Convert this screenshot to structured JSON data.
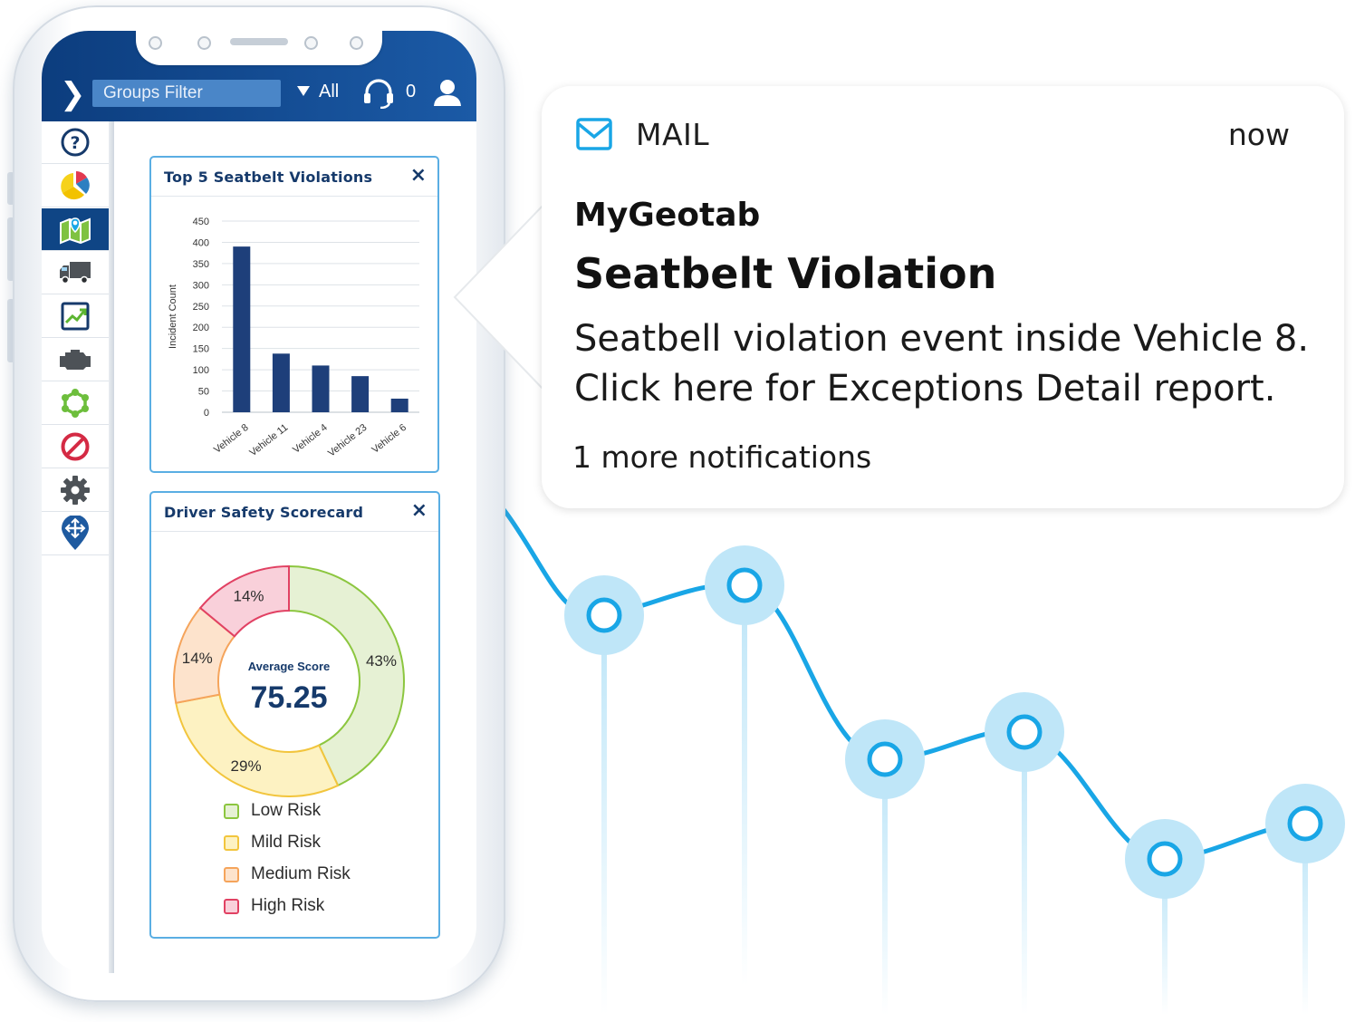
{
  "app_bar": {
    "groups_filter": "Groups Filter",
    "all_label": "All",
    "notification_count": "0"
  },
  "sidebar": {
    "items": [
      {
        "icon": "help-icon"
      },
      {
        "icon": "pie-chart-icon"
      },
      {
        "icon": "map-icon",
        "active": true
      },
      {
        "icon": "truck-icon"
      },
      {
        "icon": "trend-report-icon"
      },
      {
        "icon": "engine-icon"
      },
      {
        "icon": "zones-icon"
      },
      {
        "icon": "no-entry-icon"
      },
      {
        "icon": "gear-icon"
      },
      {
        "icon": "navigation-pin-icon"
      }
    ]
  },
  "bar_card": {
    "title": "Top 5 Seatbelt Violations",
    "close": "×"
  },
  "score_card": {
    "title": "Driver Safety Scorecard",
    "close": "×",
    "center_label": "Average Score",
    "center_value": "75.25"
  },
  "chart_data": [
    {
      "type": "bar",
      "title": "Top 5 Seatbelt Violations",
      "xlabel": "",
      "ylabel": "Incident Count",
      "categories": [
        "Vehicle 8",
        "Vehicle 11",
        "Vehicle 4",
        "Vehicle 23",
        "Vehicle 6"
      ],
      "values": [
        390,
        138,
        110,
        85,
        32
      ],
      "ylim": [
        0,
        450
      ],
      "yticks": [
        0,
        50,
        100,
        150,
        200,
        250,
        300,
        350,
        400,
        450
      ],
      "grid": true,
      "color": "#1e3f7a"
    },
    {
      "type": "pie",
      "title": "Driver Safety Scorecard",
      "categories": [
        "Low Risk",
        "Mild Risk",
        "Medium Risk",
        "High Risk"
      ],
      "values": [
        43,
        29,
        14,
        14
      ],
      "labels": [
        "43%",
        "29%",
        "14%",
        "14%"
      ],
      "fill_colors": [
        "#e6f1d4",
        "#fdf2c2",
        "#fde3cc",
        "#f9d0da"
      ],
      "stroke_colors": [
        "#8cc63f",
        "#f2c53d",
        "#f5a45b",
        "#e14163"
      ],
      "legend": "bottom"
    }
  ],
  "notification": {
    "app": "MAIL",
    "time": "now",
    "sender": "MyGeotab",
    "title": "Seatbelt Violation",
    "body_line1": "Seatbell violation event inside Vehicle 8.",
    "body_line2": "Click here for Exceptions Detail report.",
    "more": "1 more notifications",
    "icon": "mail-icon"
  },
  "colors": {
    "brand_blue": "#0f4585",
    "accent_cyan": "#19a6e6",
    "card_border": "#5aaee3"
  }
}
